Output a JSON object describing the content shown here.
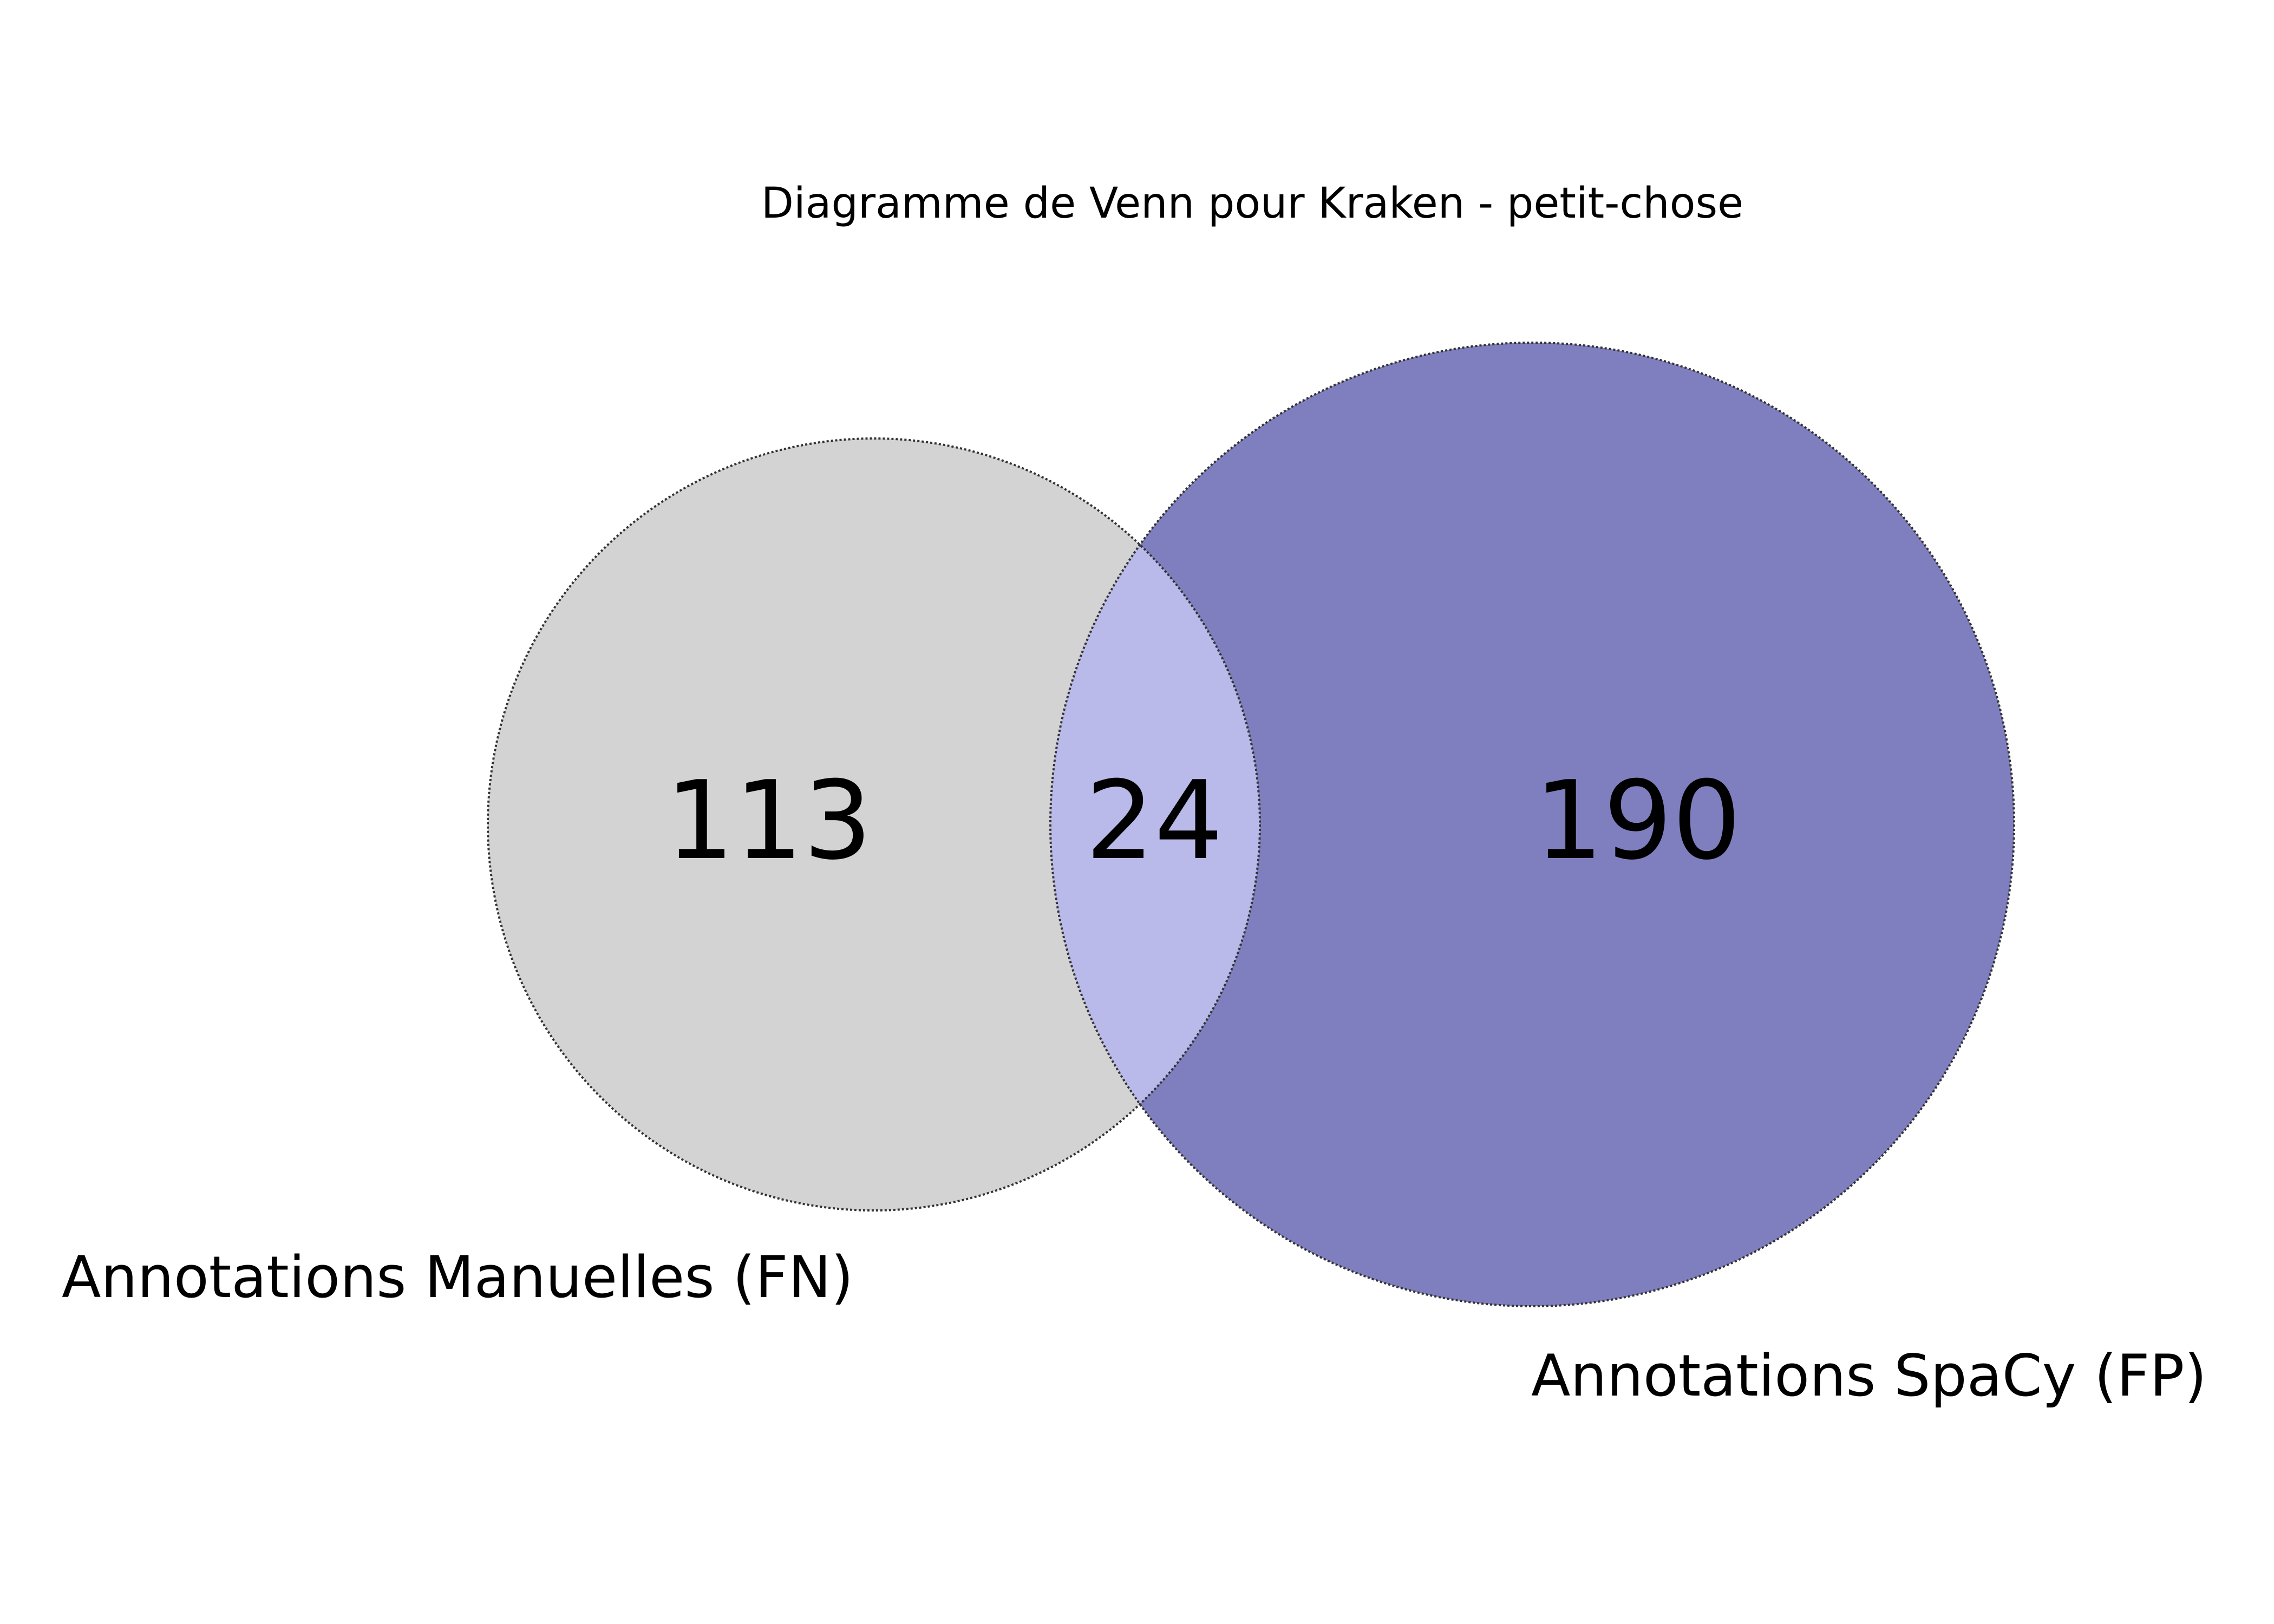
{
  "title": "Diagramme de Venn pour Kraken - petit-chose",
  "sets": [
    {
      "name": "Annotations Manuelles (FN)",
      "color": "#d3d3d3"
    },
    {
      "name": "Annotations SpaCy (FP)",
      "color": "#7f7fbf"
    }
  ],
  "regions": {
    "left_only": "113",
    "intersection": "24",
    "right_only": "190"
  },
  "intersection_color": "#b9b9ea",
  "outline_color": "#333333"
}
